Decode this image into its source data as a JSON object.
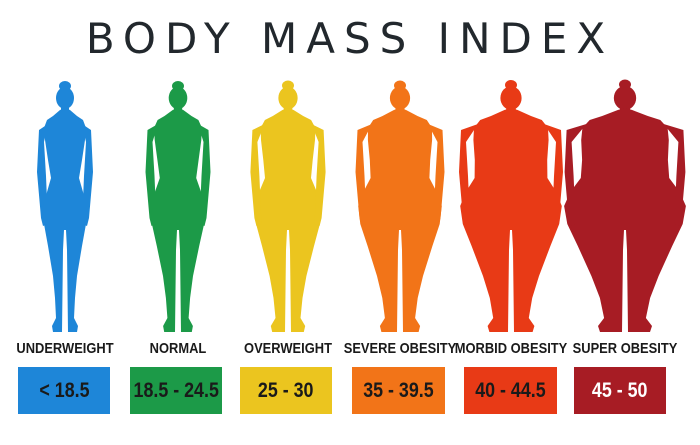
{
  "title": "BODY MASS INDEX",
  "categories": [
    {
      "label": "UNDERWEIGHT",
      "range": "< 18.5",
      "color": "#1e86d8",
      "icon": "underweight-silhouette"
    },
    {
      "label": "NORMAL",
      "range": "18.5 - 24.5",
      "color": "#1c9a48",
      "icon": "normal-silhouette"
    },
    {
      "label": "OVERWEIGHT",
      "range": "25 - 30",
      "color": "#ebc51f",
      "icon": "overweight-silhouette"
    },
    {
      "label": "SEVERE OBESITY",
      "range": "35 - 39.5",
      "color": "#f27418",
      "icon": "severe-obesity-silhouette"
    },
    {
      "label": "MORBID OBESITY",
      "range": "40 - 44.5",
      "color": "#e83a16",
      "icon": "morbid-obesity-silhouette"
    },
    {
      "label": "SUPER OBESITY",
      "range": "45 - 50",
      "color": "#a71c24",
      "icon": "super-obesity-silhouette"
    }
  ]
}
